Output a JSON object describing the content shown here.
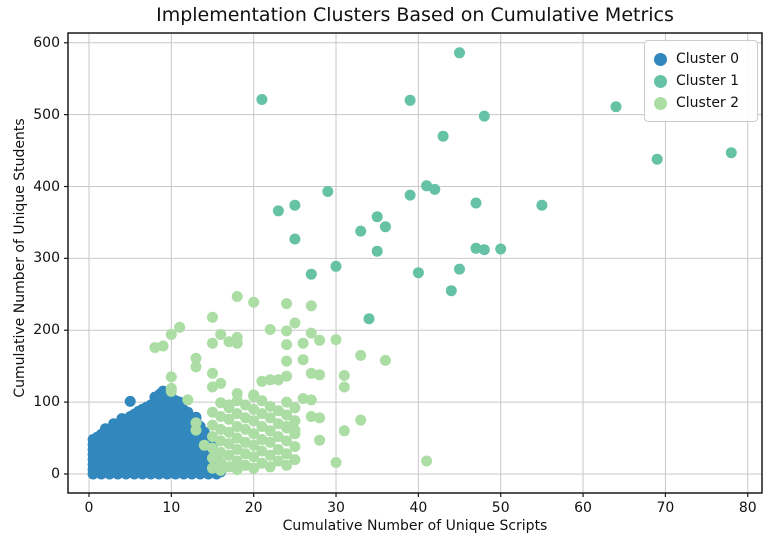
{
  "chart_data": {
    "type": "scatter",
    "title": "Implementation Clusters Based on Cumulative Metrics",
    "xlabel": "Cumulative Number of Unique Scripts",
    "ylabel": "Cumulative Number of Unique Students",
    "x_ticks": [
      0,
      10,
      20,
      30,
      40,
      50,
      60,
      70,
      80
    ],
    "y_ticks": [
      0,
      100,
      200,
      300,
      400,
      500,
      600
    ],
    "xlim": [
      -2.55,
      81.73
    ],
    "ylim": [
      -26.5,
      613.6
    ],
    "grid": true,
    "legend_position": "upper right",
    "marker_radius_px": 5.5,
    "grid_color": "#c8c8c8",
    "spine_color": "#1a1a1a",
    "background_color": "#ffffff",
    "series": [
      {
        "name": "Cluster 0",
        "color": "#3288bd",
        "points": [
          [
            5,
            101
          ],
          [
            9,
            115
          ],
          [
            8.6,
            111
          ]
        ],
        "columns": [
          {
            "x": 0.5,
            "ys": [
              0,
              6,
              13,
              20,
              27,
              34,
              41,
              48
            ]
          },
          {
            "x": 1,
            "ys": [
              3,
              9,
              16,
              23,
              30,
              37,
              44,
              51
            ]
          },
          {
            "x": 1.5,
            "ys": [
              0,
              6,
              13,
              20,
              27,
              34,
              41,
              48,
              55
            ]
          },
          {
            "x": 2,
            "ys": [
              3,
              10,
              17,
              24,
              31,
              38,
              45,
              52,
              59,
              63
            ]
          },
          {
            "x": 2.5,
            "ys": [
              0,
              6,
              13,
              20,
              27,
              34,
              41,
              48,
              55,
              61
            ]
          },
          {
            "x": 3,
            "ys": [
              3,
              10,
              17,
              24,
              31,
              38,
              45,
              52,
              59,
              66,
              70
            ]
          },
          {
            "x": 3.5,
            "ys": [
              0,
              6,
              13,
              20,
              27,
              34,
              41,
              48,
              55,
              62,
              68
            ]
          },
          {
            "x": 4,
            "ys": [
              3,
              10,
              17,
              24,
              31,
              38,
              45,
              52,
              59,
              66,
              73,
              77
            ]
          },
          {
            "x": 4.5,
            "ys": [
              0,
              6,
              13,
              20,
              27,
              34,
              41,
              48,
              55,
              62,
              69,
              75
            ]
          },
          {
            "x": 5,
            "ys": [
              3,
              10,
              17,
              24,
              31,
              38,
              45,
              52,
              59,
              66,
              73,
              80
            ]
          },
          {
            "x": 5.5,
            "ys": [
              0,
              6,
              13,
              20,
              27,
              34,
              41,
              48,
              55,
              62,
              69,
              76,
              83
            ]
          },
          {
            "x": 6,
            "ys": [
              3,
              10,
              17,
              24,
              31,
              38,
              45,
              52,
              59,
              66,
              73,
              80,
              87
            ]
          },
          {
            "x": 6.5,
            "ys": [
              0,
              6,
              13,
              20,
              27,
              34,
              41,
              48,
              55,
              62,
              69,
              76,
              83,
              90
            ]
          },
          {
            "x": 7,
            "ys": [
              3,
              10,
              17,
              24,
              31,
              38,
              45,
              52,
              59,
              66,
              73,
              80,
              87,
              93
            ]
          },
          {
            "x": 7.5,
            "ys": [
              0,
              6,
              13,
              20,
              27,
              34,
              41,
              48,
              55,
              62,
              69,
              76,
              83,
              90,
              96
            ]
          },
          {
            "x": 8,
            "ys": [
              3,
              10,
              17,
              24,
              31,
              38,
              45,
              52,
              59,
              66,
              73,
              80,
              87,
              94,
              101,
              107
            ]
          },
          {
            "x": 8.5,
            "ys": [
              0,
              6,
              13,
              20,
              27,
              34,
              41,
              48,
              55,
              62,
              69,
              76,
              83,
              90,
              97,
              103
            ]
          },
          {
            "x": 9,
            "ys": [
              3,
              10,
              17,
              24,
              31,
              38,
              45,
              52,
              59,
              66,
              73,
              80,
              87,
              94,
              101,
              108,
              115
            ]
          },
          {
            "x": 9.5,
            "ys": [
              0,
              6,
              13,
              20,
              27,
              34,
              41,
              48,
              55,
              62,
              69,
              76,
              83,
              90,
              97,
              104,
              110
            ]
          },
          {
            "x": 10,
            "ys": [
              3,
              10,
              17,
              24,
              31,
              38,
              45,
              52,
              59,
              66,
              73,
              80,
              87,
              94,
              101,
              107
            ]
          },
          {
            "x": 10.5,
            "ys": [
              0,
              6,
              13,
              20,
              27,
              34,
              41,
              48,
              55,
              62,
              69,
              76,
              83,
              90,
              97,
              102
            ]
          },
          {
            "x": 11,
            "ys": [
              3,
              10,
              17,
              24,
              31,
              38,
              45,
              52,
              59,
              66,
              73,
              80,
              87,
              94,
              100
            ]
          },
          {
            "x": 11.5,
            "ys": [
              0,
              6,
              13,
              20,
              27,
              34,
              41,
              48,
              55,
              62,
              69,
              76,
              83,
              89
            ]
          },
          {
            "x": 12,
            "ys": [
              3,
              10,
              17,
              24,
              31,
              38,
              45,
              52,
              59,
              66,
              73,
              80,
              86
            ]
          },
          {
            "x": 12.5,
            "ys": [
              0,
              6,
              13,
              20,
              27,
              34,
              41,
              48,
              55,
              62,
              69,
              76
            ]
          },
          {
            "x": 13,
            "ys": [
              3,
              10,
              17,
              24,
              31,
              38,
              45,
              52,
              59,
              66,
              73,
              79
            ]
          },
          {
            "x": 13.5,
            "ys": [
              0,
              6,
              13,
              20,
              27,
              34,
              41,
              48,
              55,
              62,
              66
            ]
          },
          {
            "x": 14,
            "ys": [
              3,
              10,
              17,
              24,
              31,
              38,
              45,
              52,
              58
            ]
          },
          {
            "x": 14.5,
            "ys": [
              0,
              6,
              13,
              20,
              27,
              34,
              41,
              46
            ]
          },
          {
            "x": 15,
            "ys": [
              3,
              10,
              17,
              24,
              31,
              38
            ]
          },
          {
            "x": 15.5,
            "ys": [
              0,
              6,
              13,
              20,
              26
            ]
          },
          {
            "x": 16,
            "ys": [
              3,
              9,
              15
            ]
          }
        ]
      },
      {
        "name": "Cluster 1",
        "color": "#66c2a5",
        "points": [
          [
            45,
            586
          ],
          [
            39,
            520
          ],
          [
            21,
            521
          ],
          [
            48,
            498
          ],
          [
            64,
            511
          ],
          [
            43,
            470
          ],
          [
            69,
            438
          ],
          [
            78,
            447
          ],
          [
            29,
            393
          ],
          [
            41,
            401
          ],
          [
            42,
            396
          ],
          [
            39,
            388
          ],
          [
            47,
            377
          ],
          [
            55,
            374
          ],
          [
            23,
            366
          ],
          [
            25,
            374
          ],
          [
            35,
            358
          ],
          [
            36,
            344
          ],
          [
            33,
            338
          ],
          [
            35,
            310
          ],
          [
            30,
            289
          ],
          [
            27,
            278
          ],
          [
            25,
            327
          ],
          [
            34,
            216
          ],
          [
            47,
            314
          ],
          [
            48,
            312
          ],
          [
            50,
            313
          ],
          [
            40,
            280
          ],
          [
            45,
            285
          ],
          [
            44,
            255
          ]
        ]
      },
      {
        "name": "Cluster 2",
        "color": "#abdda4",
        "points": [
          [
            18,
            247
          ],
          [
            20,
            239
          ],
          [
            24,
            237
          ],
          [
            27,
            234
          ],
          [
            15,
            218
          ],
          [
            11,
            204
          ],
          [
            10,
            194
          ],
          [
            22,
            201
          ],
          [
            24,
            199
          ],
          [
            25,
            210
          ],
          [
            27,
            196
          ],
          [
            16,
            194
          ],
          [
            18,
            190
          ],
          [
            30,
            187
          ],
          [
            8,
            176
          ],
          [
            9,
            178
          ],
          [
            15,
            182
          ],
          [
            17,
            184
          ],
          [
            18,
            182
          ],
          [
            24,
            180
          ],
          [
            26,
            182
          ],
          [
            28,
            186
          ],
          [
            24,
            157
          ],
          [
            26,
            159
          ],
          [
            13,
            161
          ],
          [
            13,
            149
          ],
          [
            15,
            140
          ],
          [
            16,
            126
          ],
          [
            15,
            121
          ],
          [
            10,
            135
          ],
          [
            10,
            119
          ],
          [
            10,
            115
          ],
          [
            21,
            129
          ],
          [
            22,
            131
          ],
          [
            18,
            112
          ],
          [
            20,
            110
          ],
          [
            12,
            103
          ],
          [
            17,
            96
          ],
          [
            17,
            94
          ],
          [
            27,
            140
          ],
          [
            28,
            138
          ],
          [
            24,
            136
          ],
          [
            23,
            131
          ],
          [
            26,
            105
          ],
          [
            27,
            103
          ],
          [
            27,
            80
          ],
          [
            28,
            78
          ],
          [
            28,
            47
          ],
          [
            25,
            61
          ],
          [
            24,
            66
          ],
          [
            13,
            71
          ],
          [
            13,
            61
          ],
          [
            14,
            40
          ],
          [
            33,
            165
          ],
          [
            36,
            158
          ],
          [
            31,
            137
          ],
          [
            31,
            121
          ],
          [
            33,
            75
          ],
          [
            31,
            60
          ],
          [
            41,
            18
          ],
          [
            30,
            16
          ]
        ],
        "columns": [
          {
            "x": 15,
            "ys": [
              8,
              22,
              36,
              52,
              68,
              86
            ]
          },
          {
            "x": 16,
            "ys": [
              5,
              16,
              30,
              46,
              62,
              80,
              99
            ]
          },
          {
            "x": 17,
            "ys": [
              10,
              26,
              42,
              58,
              76,
              92
            ]
          },
          {
            "x": 18,
            "ys": [
              6,
              18,
              34,
              50,
              66,
              84,
              102
            ]
          },
          {
            "x": 19,
            "ys": [
              12,
              28,
              44,
              62,
              78,
              96
            ]
          },
          {
            "x": 20,
            "ys": [
              8,
              24,
              40,
              56,
              74,
              90,
              108
            ]
          },
          {
            "x": 21,
            "ys": [
              15,
              32,
              48,
              66,
              84,
              102
            ]
          },
          {
            "x": 22,
            "ys": [
              10,
              26,
              44,
              60,
              78,
              94
            ]
          },
          {
            "x": 23,
            "ys": [
              18,
              34,
              52,
              70,
              88
            ]
          },
          {
            "x": 24,
            "ys": [
              12,
              28,
              46,
              64,
              82,
              100
            ]
          },
          {
            "x": 25,
            "ys": [
              20,
              38,
              56,
              74,
              92
            ]
          }
        ]
      }
    ]
  }
}
